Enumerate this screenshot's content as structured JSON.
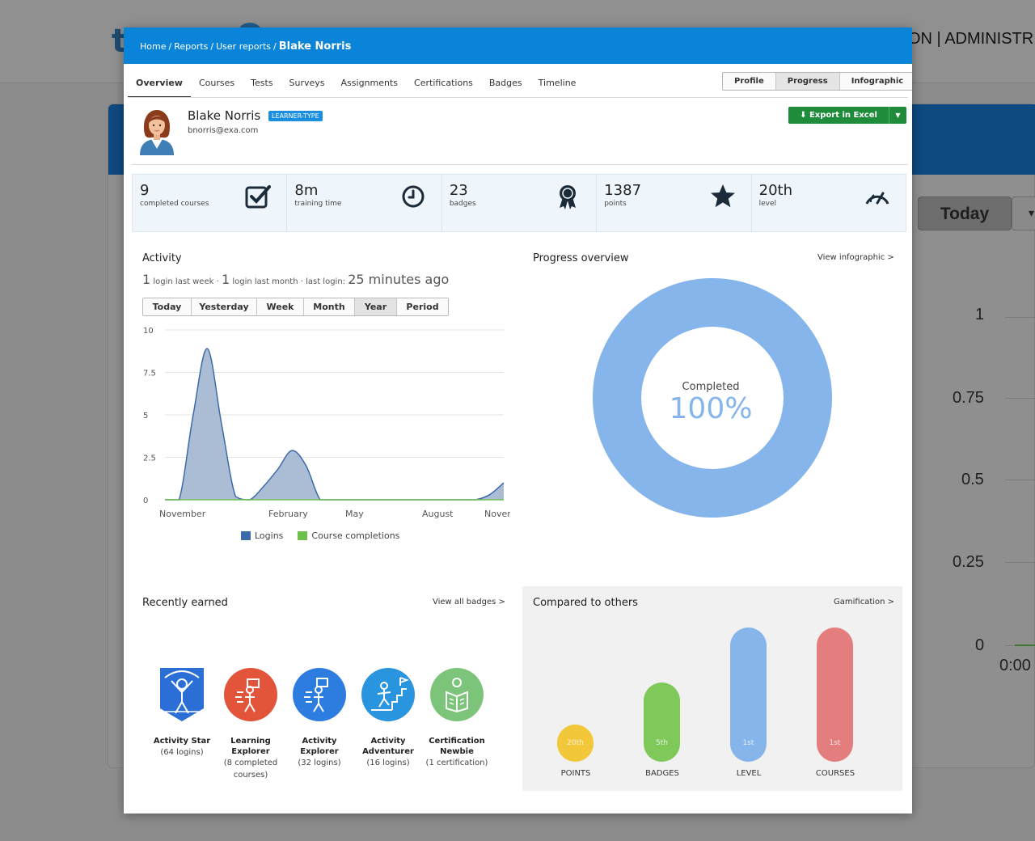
{
  "background": {
    "user_text": "ON | ADMINISTR",
    "today_button": "Today",
    "y_axis_ticks": [
      "1",
      "0.75",
      "0.5",
      "0.25",
      "0"
    ],
    "x_tick": "0:00"
  },
  "modal": {
    "breadcrumb": {
      "home": "Home",
      "reports": "Reports",
      "user_reports": "User reports",
      "sep": "/",
      "current": "Blake Norris"
    },
    "tabs": [
      "Overview",
      "Courses",
      "Tests",
      "Surveys",
      "Assignments",
      "Certifications",
      "Badges",
      "Timeline"
    ],
    "active_tab": "Overview",
    "view_switch": [
      "Profile",
      "Progress",
      "Infographic"
    ],
    "active_view": "Progress",
    "user": {
      "name": "Blake Norris",
      "type": "LEARNER-TYPE",
      "email": "bnorris@exa.com"
    },
    "export_button": "Export in Excel",
    "stats": [
      {
        "value": "9",
        "label": "completed courses",
        "icon": "checkbox-icon"
      },
      {
        "value": "8m",
        "label": "training time",
        "icon": "clock-icon"
      },
      {
        "value": "23",
        "label": "badges",
        "icon": "award-ribbon-icon"
      },
      {
        "value": "1387",
        "label": "points",
        "icon": "star-icon"
      },
      {
        "value": "20th",
        "label": "level",
        "icon": "speedometer-icon"
      }
    ],
    "activity": {
      "title": "Activity",
      "logins_week_count": "1",
      "logins_week_text": "login last week ·",
      "logins_month_count": "1",
      "logins_month_text": "login last month · last login:",
      "last_login": "25 minutes ago",
      "periods": [
        "Today",
        "Yesterday",
        "Week",
        "Month",
        "Year",
        "Period"
      ],
      "active_period": "Year"
    },
    "progress": {
      "title": "Progress overview",
      "link": "View infographic >",
      "center_label": "Completed",
      "center_value": "100%",
      "completed_fraction": 1.0
    },
    "recently_earned": {
      "title": "Recently earned",
      "link": "View all badges >",
      "badges": [
        {
          "name": "Activity Star",
          "sub": "(64 logins)",
          "color": "#2b6fd6",
          "shape": "shield",
          "icon": "activity-star-icon"
        },
        {
          "name": "Learning Explorer",
          "sub": "(8 completed courses)",
          "color": "#e2553b",
          "shape": "circle",
          "icon": "learning-explorer-icon"
        },
        {
          "name": "Activity Explorer",
          "sub": "(32 logins)",
          "color": "#2d7de0",
          "shape": "circle",
          "icon": "activity-explorer-icon"
        },
        {
          "name": "Activity Adventurer",
          "sub": "(16 logins)",
          "color": "#2a95df",
          "shape": "circle",
          "icon": "activity-adventurer-icon"
        },
        {
          "name": "Certification Newbie",
          "sub": "(1 certification)",
          "color": "#7cc47a",
          "shape": "circle",
          "icon": "certification-newbie-icon"
        }
      ]
    },
    "compared": {
      "title": "Compared to others",
      "link": "Gamification >",
      "items": [
        {
          "label": "POINTS",
          "rank": "20th",
          "color": "#f2c83a"
        },
        {
          "label": "BADGES",
          "rank": "5th",
          "color": "#7ec95a"
        },
        {
          "label": "LEVEL",
          "rank": "1st",
          "color": "#85b5ea"
        },
        {
          "label": "COURSES",
          "rank": "1st",
          "color": "#e47d7d"
        }
      ]
    }
  },
  "chart_data": {
    "type": "area",
    "title": "",
    "xlabel": "",
    "ylabel": "",
    "ylim": [
      0,
      10
    ],
    "y_ticks": [
      "0",
      "2.5",
      "5",
      "7.5",
      "10"
    ],
    "x_tick_labels": [
      "November",
      "February",
      "May",
      "August",
      "Novemb"
    ],
    "grid": true,
    "legend_position": "bottom",
    "x": [
      0,
      0.5,
      1,
      1.5,
      2,
      2.5,
      3,
      3.5,
      4,
      4.5,
      5,
      5.5,
      6,
      6.5,
      7,
      7.5,
      8,
      8.5,
      9,
      9.5,
      10,
      10.5,
      11,
      11.5,
      12
    ],
    "series": [
      {
        "name": "Logins",
        "color": "#3d6aa8",
        "fill": "#a7b9d3",
        "values": [
          0,
          0,
          5.0,
          8.9,
          4.5,
          0.2,
          0,
          0.8,
          1.8,
          2.9,
          2.0,
          0,
          0,
          0,
          0,
          0,
          0,
          0,
          0,
          0,
          0,
          0,
          0,
          0.3,
          1.0
        ]
      },
      {
        "name": "Course completions",
        "color": "#6fbf4f",
        "fill": "#6fbf4f",
        "values": [
          0,
          0,
          0,
          0,
          0,
          0,
          0,
          0,
          0,
          0,
          0,
          0,
          0,
          0,
          0,
          0,
          0,
          0,
          0,
          0,
          0,
          0,
          0,
          0,
          0
        ]
      }
    ]
  }
}
